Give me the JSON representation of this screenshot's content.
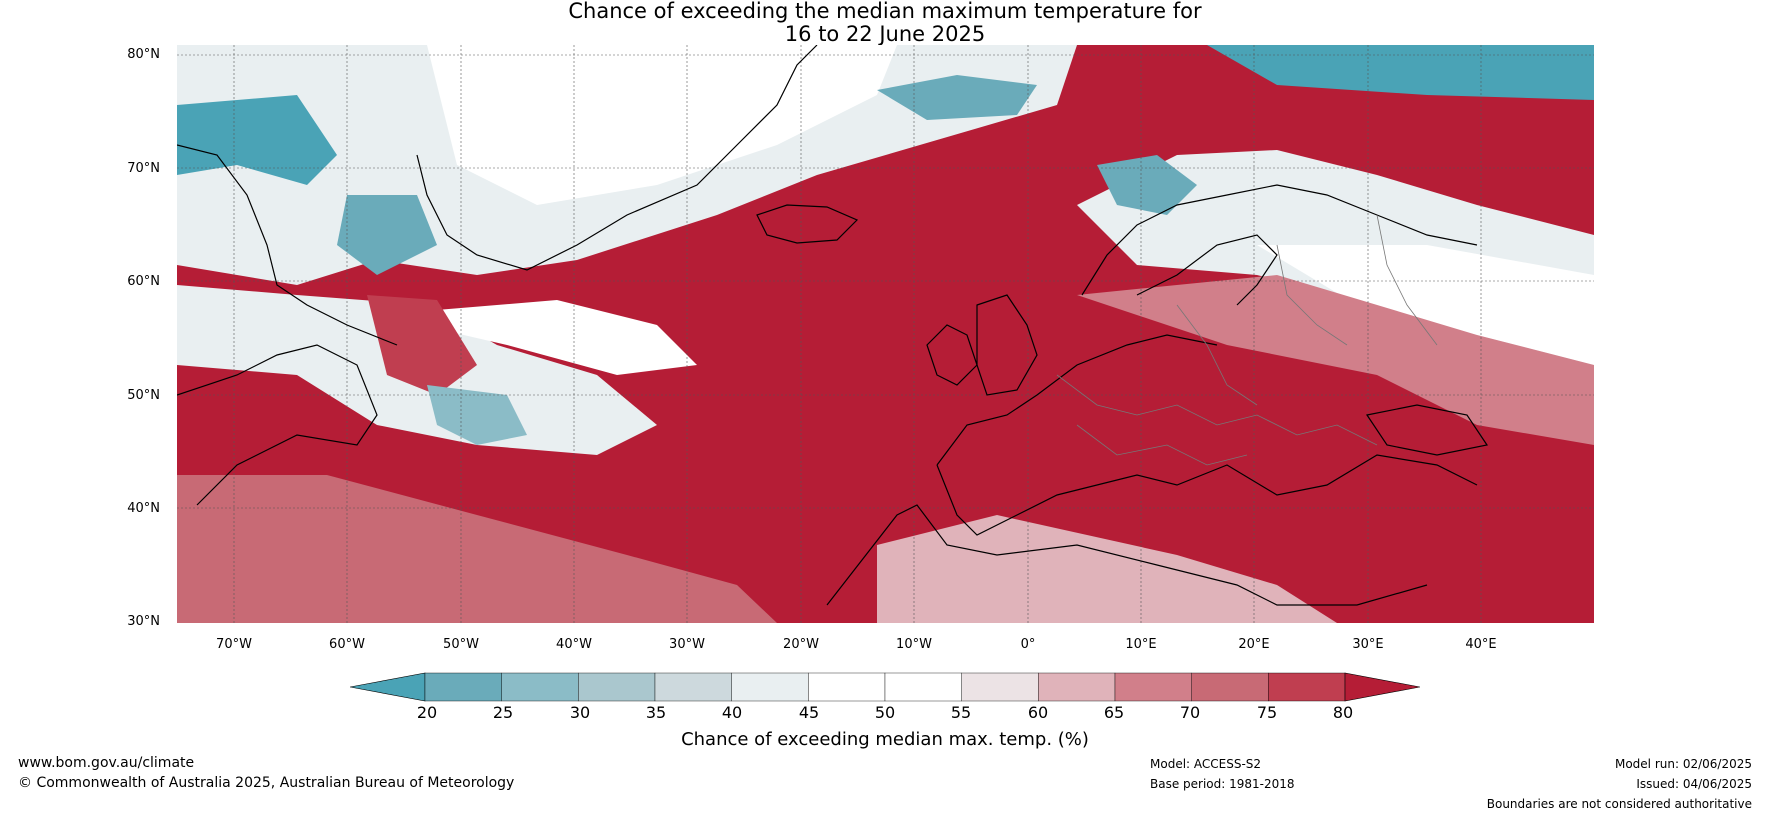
{
  "title_line1": "Chance of exceeding the median maximum temperature for",
  "title_line2": "16 to 22 June 2025",
  "lat_labels": [
    "80°N",
    "70°N",
    "60°N",
    "50°N",
    "40°N",
    "30°N"
  ],
  "lon_labels": [
    "70°W",
    "60°W",
    "50°W",
    "40°W",
    "30°W",
    "20°W",
    "10°W",
    "0°",
    "10°E",
    "20°E",
    "30°E",
    "40°E"
  ],
  "colorbar": {
    "label": "Chance of exceeding median max. temp. (%)",
    "ticks": [
      "20",
      "25",
      "30",
      "35",
      "40",
      "45",
      "50",
      "55",
      "60",
      "65",
      "70",
      "75",
      "80"
    ],
    "colors": [
      "#4aa3b6",
      "#6aabba",
      "#8bbcc7",
      "#aac7ce",
      "#cdd9dd",
      "#e9eff1",
      "#ffffff",
      "#ffffff",
      "#ece3e5",
      "#e0b3ba",
      "#d17f8a",
      "#c86a75",
      "#c03e50",
      "#b51d36"
    ]
  },
  "footer": {
    "website": "www.bom.gov.au/climate",
    "copyright": "© Commonwealth of Australia 2025, Australian Bureau of Meteorology",
    "model": "Model: ACCESS-S2",
    "base_period": "Base period: 1981-2018",
    "model_run": "Model run: 02/06/2025",
    "issued": "Issued: 04/06/2025",
    "disclaimer": "Boundaries are not considered authoritative"
  }
}
